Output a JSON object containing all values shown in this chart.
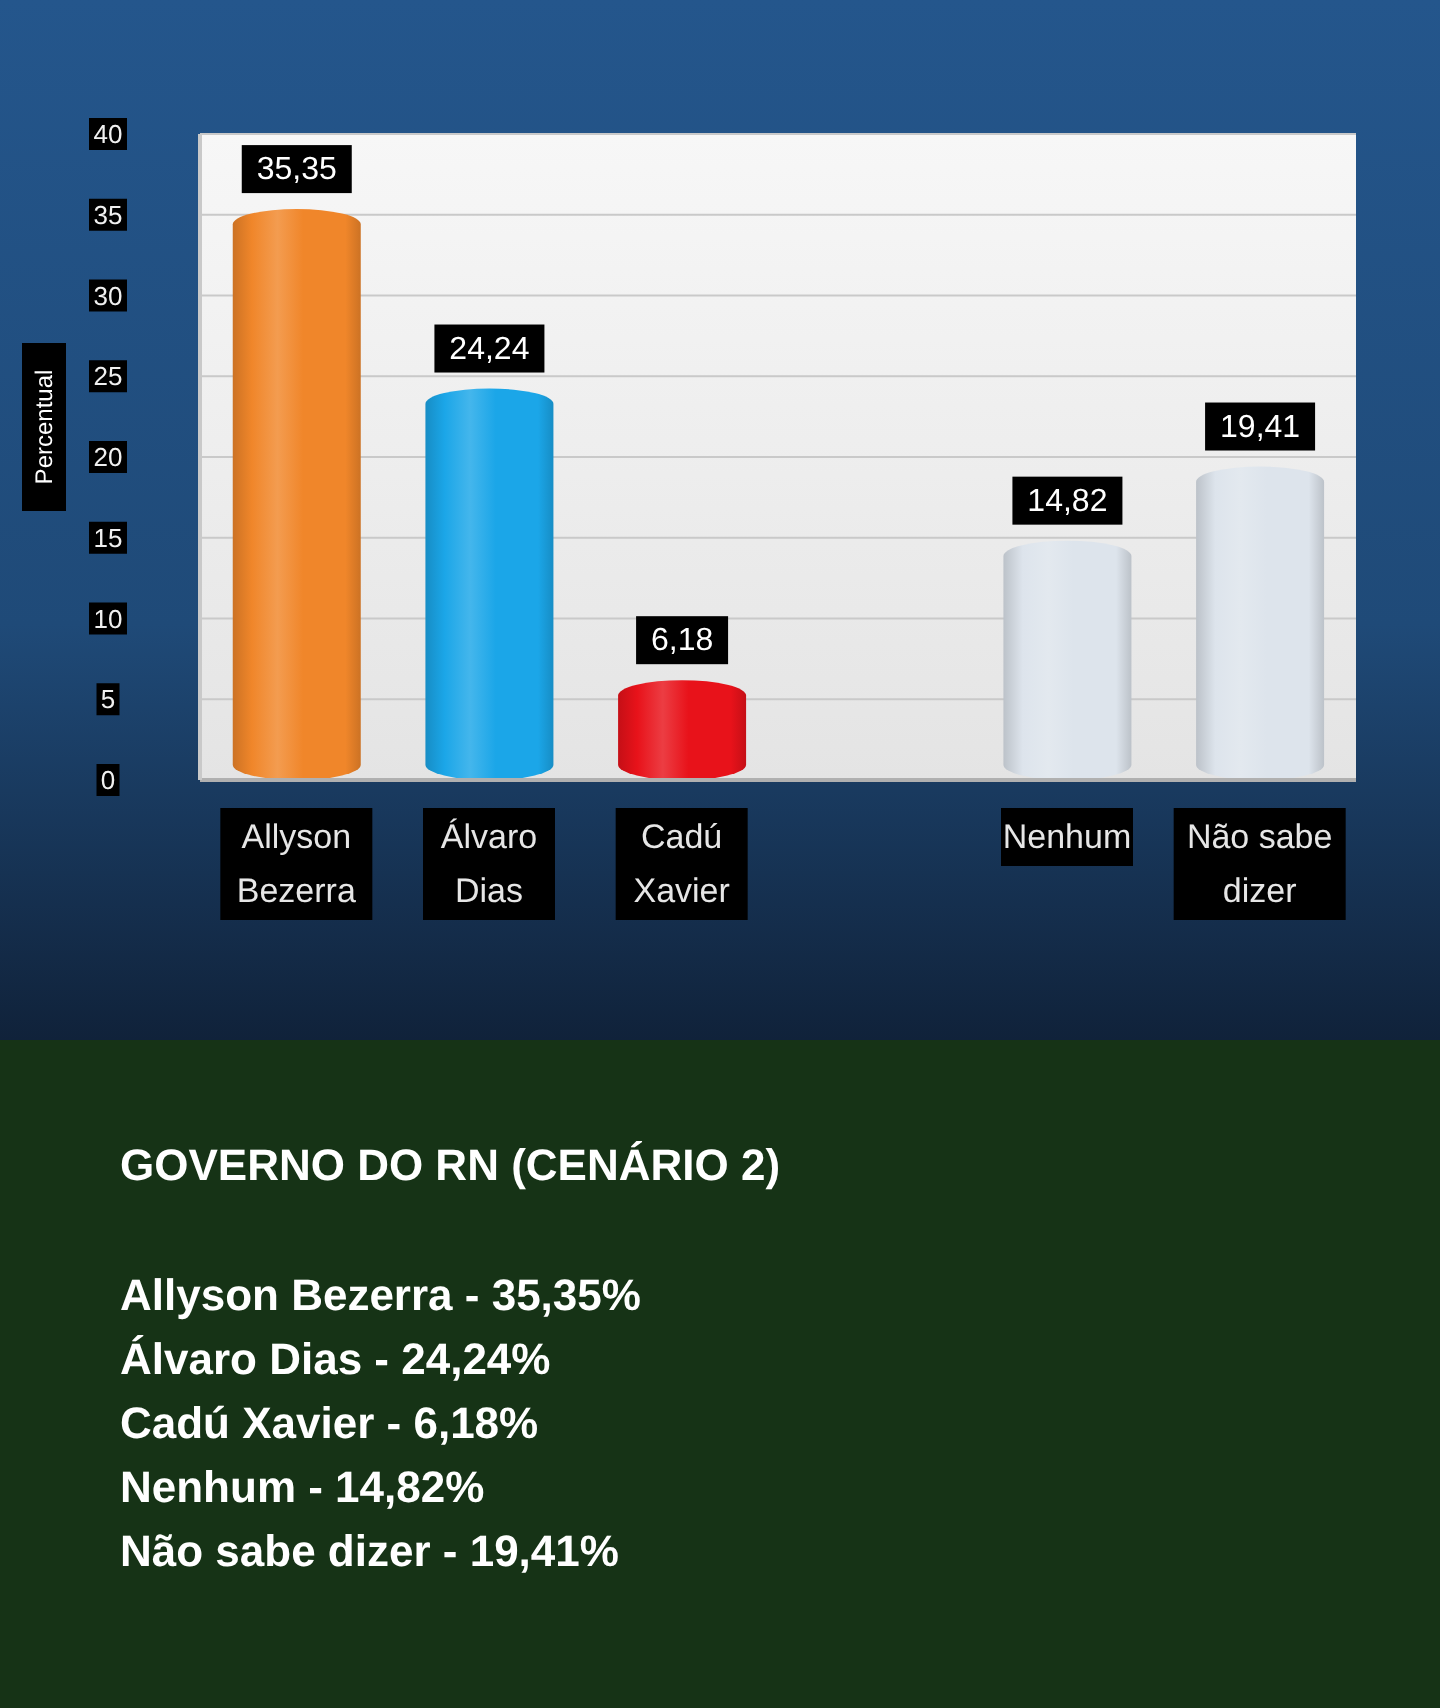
{
  "chart_data": {
    "type": "bar",
    "title": "GOVERNO DO RN (CENÁRIO 2)",
    "ylabel": "Percentual",
    "categories": [
      "Allyson Bezerra",
      "Álvaro Dias",
      "Cadú Xavier",
      null,
      "Nenhum",
      "Não sabe dizer"
    ],
    "values": [
      35.35,
      24.24,
      6.18,
      null,
      14.82,
      19.41
    ],
    "colors": [
      "#f0862a",
      "#1ba6e8",
      "#e8121a",
      null,
      "#dde4ec",
      "#dde4ec"
    ],
    "value_labels": [
      "35,35",
      "24,24",
      "6,18",
      null,
      "14,82",
      "19,41"
    ],
    "ylim": [
      0,
      40
    ],
    "yticks": [
      0,
      5,
      10,
      15,
      20,
      25,
      30,
      35,
      40
    ],
    "grid": "y",
    "annotations": [
      "Allyson Bezerra - 35,35%",
      "Álvaro Dias - 24,24%",
      "Cadú Xavier - 6,18%",
      "Nenhum - 14,82%",
      "Não sabe dizer - 19,41%"
    ]
  }
}
